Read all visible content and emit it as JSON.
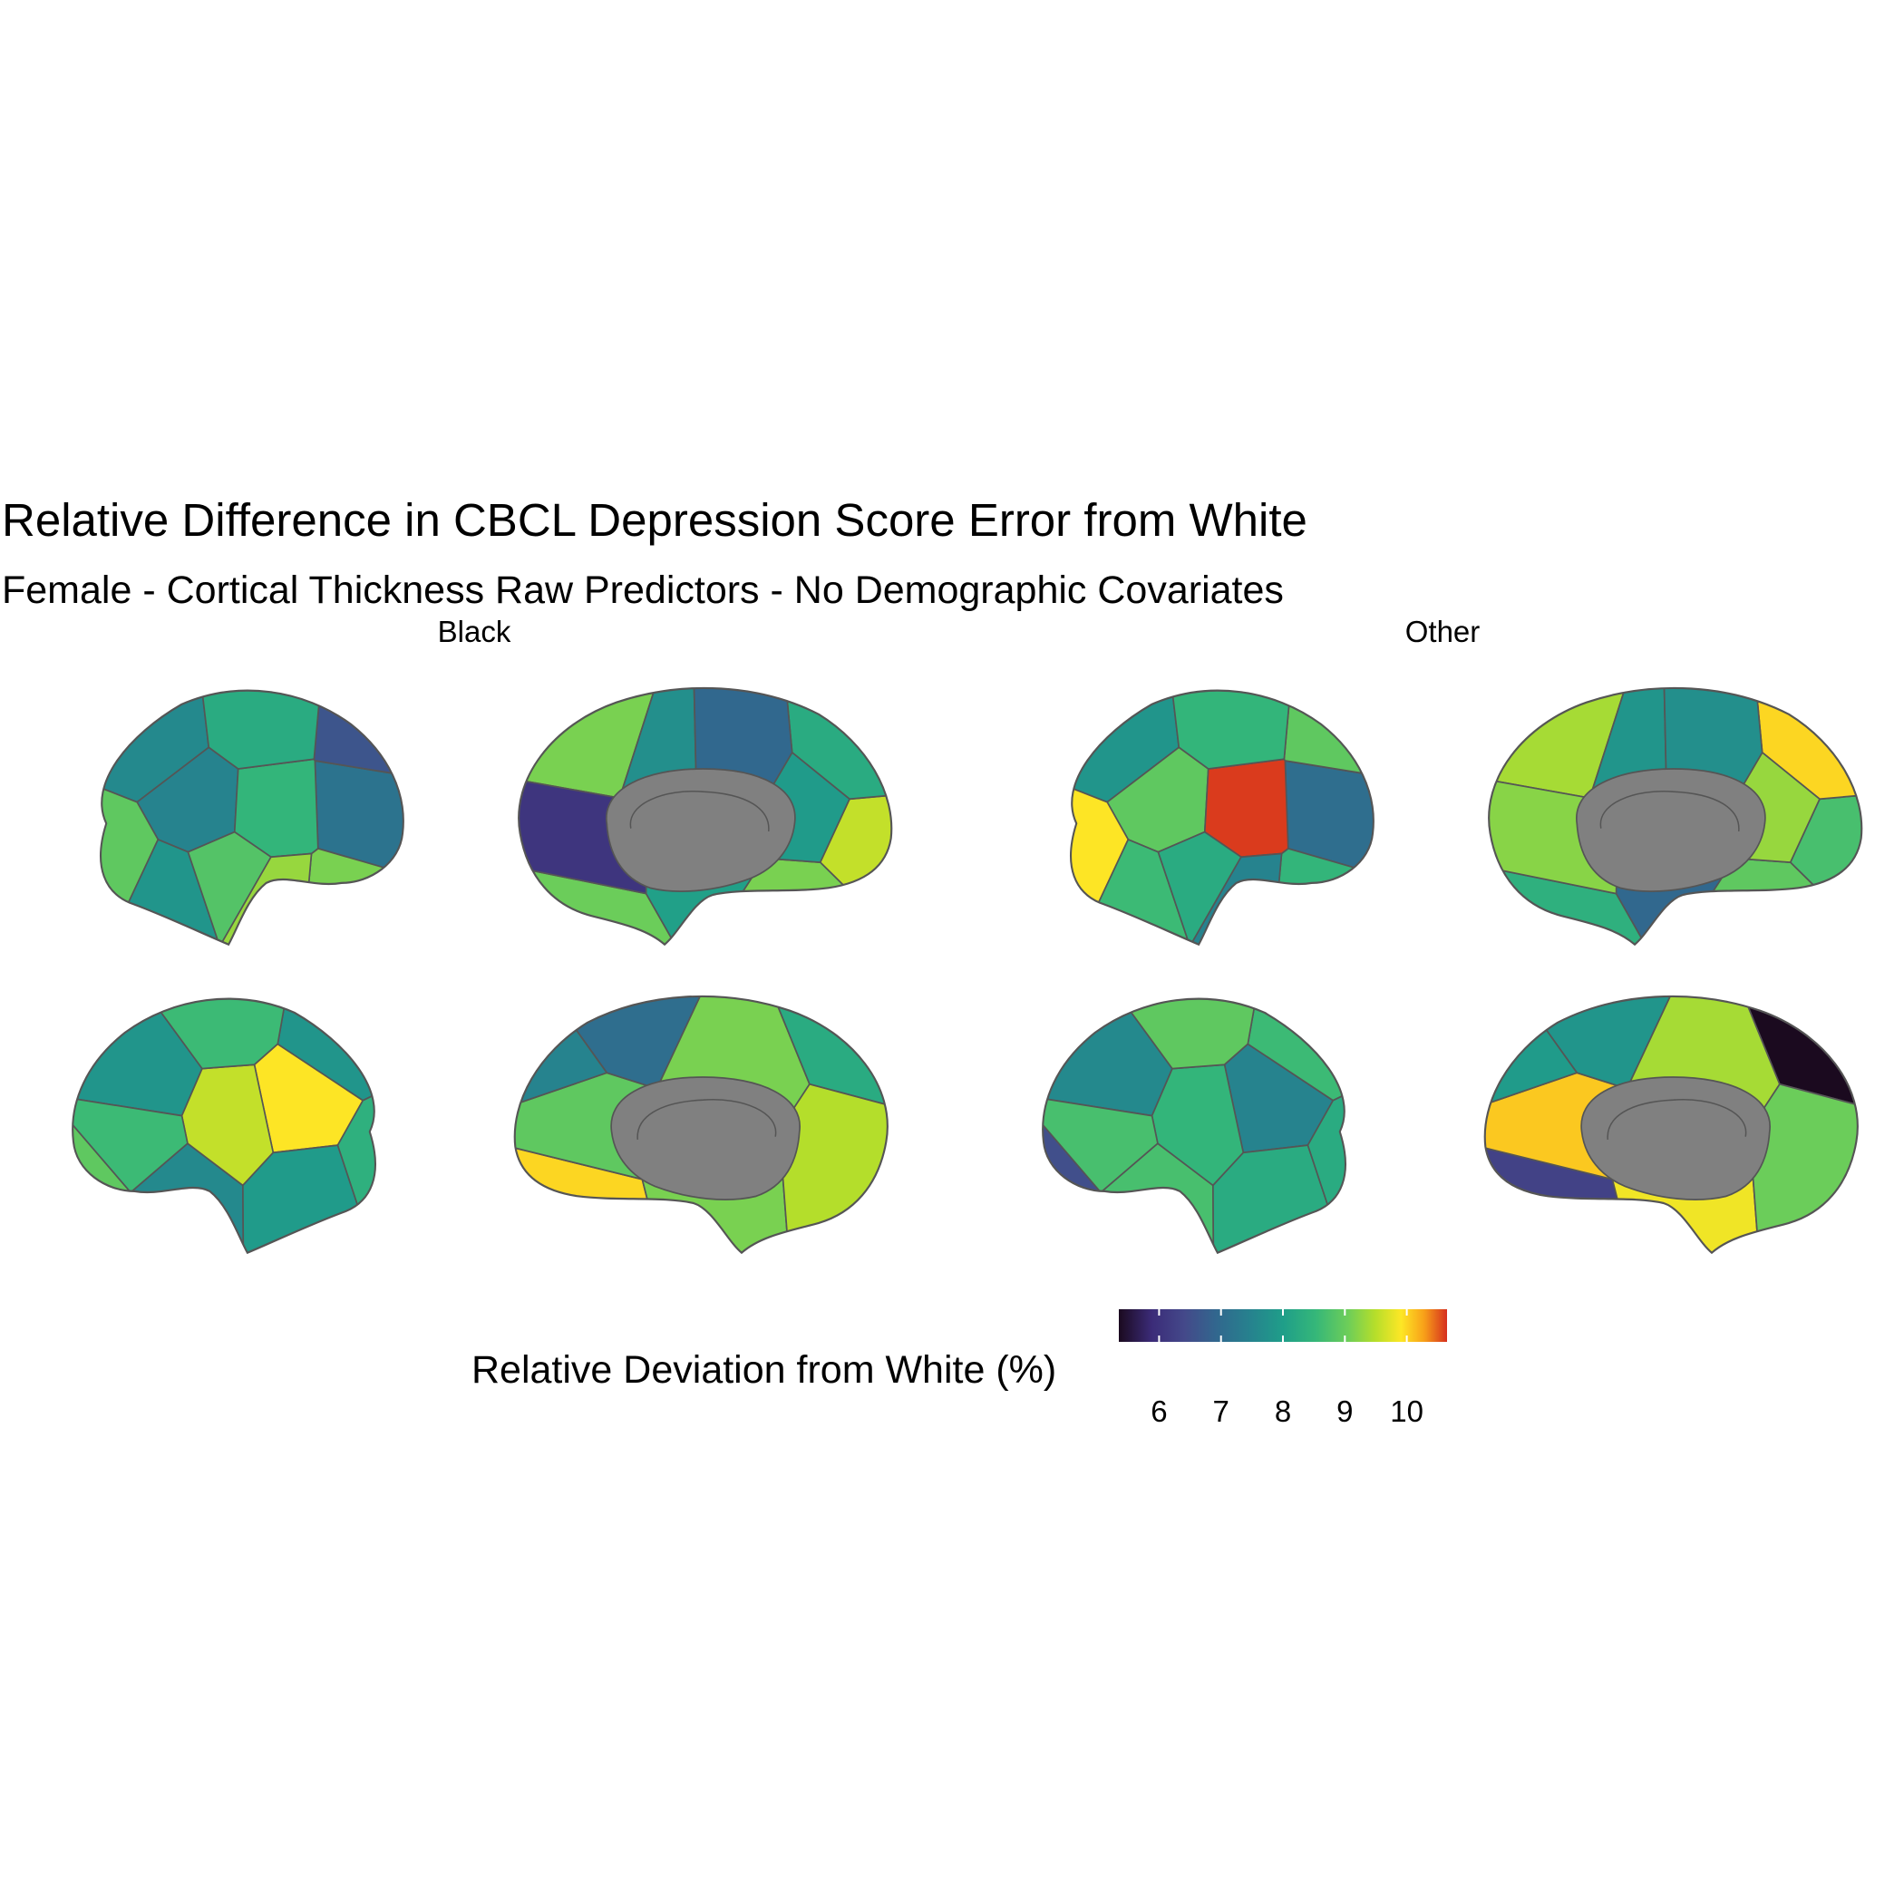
{
  "chart_data": {
    "type": "heatmap",
    "title": "Relative Difference in CBCL Depression Score Error from White",
    "subtitle": "Female - Cortical Thickness Raw Predictors - No Demographic Covariates",
    "facets": [
      {
        "label": "Black",
        "views": [
          {
            "view": "lateral-left",
            "region_values": [
              7.4,
              7.0,
              7.3,
              8.8,
              8.6,
              8.2,
              7.6,
              6.5,
              8.0,
              9.0,
              7.3,
              8.5,
              9.5
            ]
          },
          {
            "view": "medial-left",
            "region_values": [
              8.8,
              9.3,
              8.7,
              7.8,
              7.5,
              6.0,
              8.0,
              8.8,
              7.7,
              6.8
            ]
          },
          {
            "view": "lateral-right",
            "region_values": [
              8.6,
              7.6,
              7.4,
              9.7,
              9.3,
              7.6,
              7.7,
              8.3,
              8.1,
              8.3
            ]
          },
          {
            "view": "medial-right",
            "region_values": [
              9.8,
              8.6,
              8.8,
              8.0,
              6.9,
              8.8,
              7.3,
              9.2
            ]
          }
        ]
      },
      {
        "label": "Other",
        "views": [
          {
            "view": "lateral-left",
            "region_values": [
              7.6,
              6.9,
              8.6,
              8.2,
              9.7,
              10.6,
              8.3,
              8.6,
              8.2,
              7.3,
              9.8,
              8.0,
              8.8
            ]
          },
          {
            "view": "medial-left",
            "region_values": [
              9.1,
              8.4,
              8.1,
              6.8,
              7.6,
              8.9,
              9.8,
              8.6,
              9.0,
              7.5
            ]
          },
          {
            "view": "lateral-right",
            "region_values": [
              6.4,
              7.4,
              8.4,
              7.3,
              8.2,
              8.3,
              8.0,
              8.6,
              8.0,
              8.4
            ]
          },
          {
            "view": "medial-right",
            "region_values": [
              6.2,
              9.9,
              9.1,
              5.3,
              7.6,
              9.6,
              7.7,
              8.7
            ]
          }
        ]
      }
    ],
    "legend": {
      "title": "Relative Deviation from White (%)",
      "ticks": [
        6,
        7,
        8,
        9,
        10
      ],
      "range": [
        5.35,
        10.65
      ],
      "position": "bottom",
      "colormap": [
        "#1b0a1f",
        "#3b2b78",
        "#44498a",
        "#31688e",
        "#26828e",
        "#1f9e89",
        "#35b779",
        "#6ece58",
        "#b5de2b",
        "#fde725",
        "#f8a019",
        "#d62f1e"
      ]
    },
    "colors": {
      "medial_wall": "#808080",
      "outline": "#555555"
    }
  }
}
